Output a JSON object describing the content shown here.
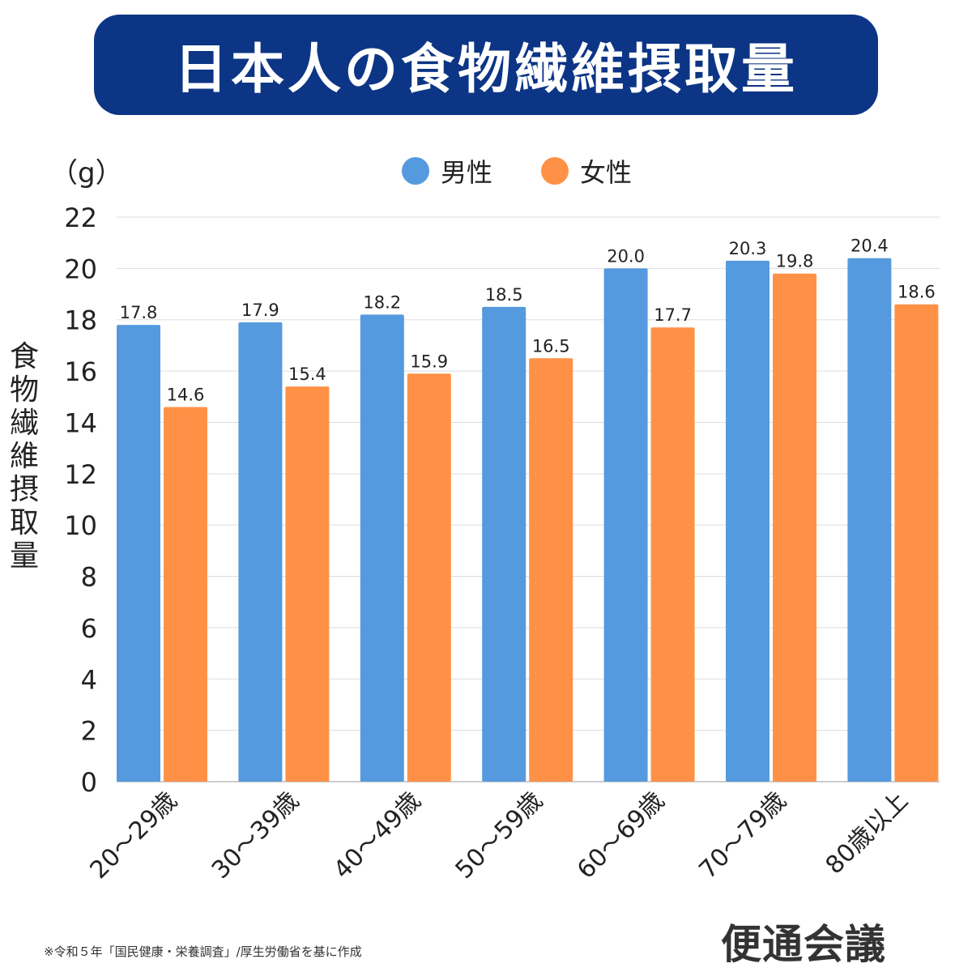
{
  "title": "日本人の食物繊維摂取量",
  "unit": "（g）",
  "footnote": "※令和５年「国民健康・栄養調査」/厚生労働省を基に作成",
  "logo": "便通会議",
  "chart_data": {
    "type": "bar",
    "title": "日本人の食物繊維摂取量",
    "ylabel": "食物繊維摂取量",
    "yunit": "（g）",
    "ylim": [
      0,
      22
    ],
    "yticks": [
      0,
      2,
      4,
      6,
      8,
      10,
      12,
      14,
      16,
      18,
      20,
      22
    ],
    "grid": true,
    "legend_position": "top",
    "categories": [
      "20〜29歳",
      "30〜39歳",
      "40〜49歳",
      "50〜59歳",
      "60〜69歳",
      "70〜79歳",
      "80歳以上"
    ],
    "series": [
      {
        "name": "男性",
        "color": "#559ade",
        "values": [
          17.8,
          17.9,
          18.2,
          18.5,
          20.0,
          20.3,
          20.4
        ]
      },
      {
        "name": "女性",
        "color": "#ff9147",
        "values": [
          14.6,
          15.4,
          15.9,
          16.5,
          17.7,
          19.8,
          18.6
        ]
      }
    ]
  }
}
